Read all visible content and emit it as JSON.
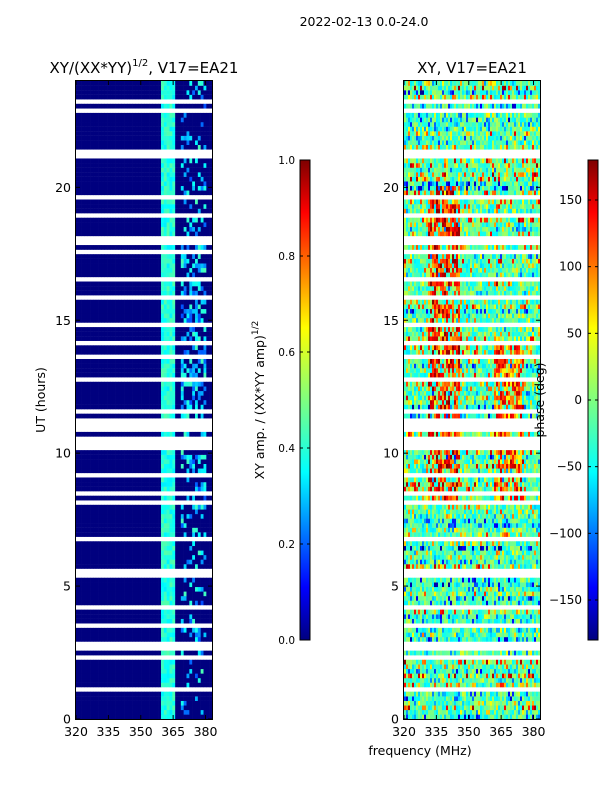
{
  "suptitle": "2022-02-13 0.0-24.0",
  "colors": {
    "jet": [
      "#00007f",
      "#0000ff",
      "#007fff",
      "#00ffff",
      "#7fff7f",
      "#ffff00",
      "#ff7f00",
      "#ff0000",
      "#7f0000"
    ],
    "background": "#ffffff",
    "axis": "#000000"
  },
  "chart_data": [
    {
      "type": "heatmap",
      "title": "XY/(XX*YY)",
      "title_exponent": "1/2",
      "title_suffix": ", V17=EA21",
      "xlabel": "",
      "ylabel": "UT (hours)",
      "xlim": [
        320,
        383
      ],
      "ylim": [
        0,
        24
      ],
      "xticks": [
        320,
        335,
        350,
        365,
        380
      ],
      "yticks": [
        0,
        5,
        10,
        15,
        20
      ],
      "value_range": [
        0.0,
        1.0
      ],
      "description_of_values": "Mostly ~0 (dark blue); elevated ~0.35-0.5 near 360-365 MHz and 370-380 MHz, strongest 9-18 UT; white gaps are flagged rows.",
      "colorbar": {
        "label": "XY amp. / (XX*YY amp)",
        "label_exponent": "1/2",
        "range": [
          0.0,
          1.0
        ],
        "ticks": [
          "0.0",
          "0.2",
          "0.4",
          "0.6",
          "0.8",
          "1.0"
        ]
      }
    },
    {
      "type": "heatmap",
      "title": "XY, V17=EA21",
      "xlabel": "frequency (MHz)",
      "ylabel": "",
      "xlim": [
        320,
        383
      ],
      "ylim": [
        0,
        24
      ],
      "xticks": [
        320,
        335,
        350,
        365,
        380
      ],
      "yticks": [
        0,
        5,
        10,
        15,
        20
      ],
      "value_range": [
        -180,
        180
      ],
      "description_of_values": "Phase noise (deg) spanning full range; coherent warm features near 330-345 MHz and 362-375 MHz, mostly 8-20 UT; white gaps are flagged rows.",
      "colorbar": {
        "label": "phase (deg)",
        "range": [
          -180,
          180
        ],
        "ticks": [
          "−150",
          "−100",
          "−50",
          "0",
          "50",
          "100",
          "150"
        ]
      }
    }
  ]
}
